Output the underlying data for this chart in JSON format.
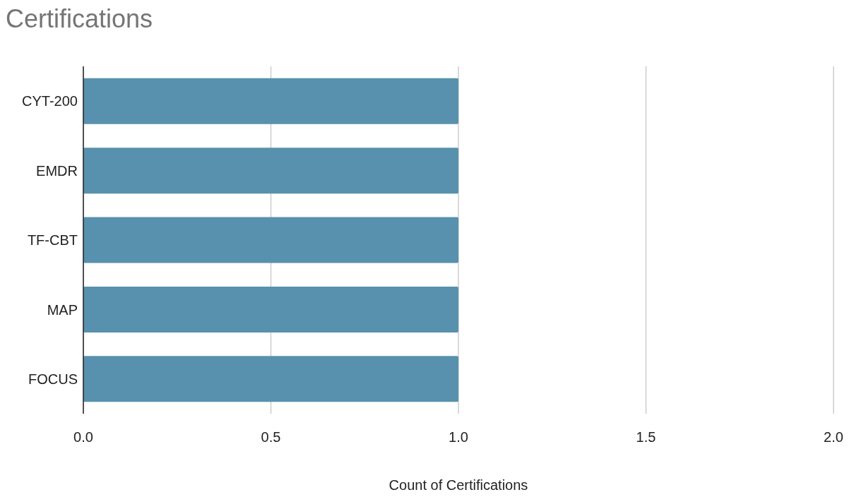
{
  "chart_data": {
    "type": "bar",
    "orientation": "horizontal",
    "title": "Certifications",
    "xlabel": "Count of Certifications",
    "categories": [
      "CYT-200",
      "EMDR",
      "TF-CBT",
      "MAP",
      "FOCUS"
    ],
    "values": [
      1,
      1,
      1,
      1,
      1
    ],
    "color": "#5891ad",
    "xlim": [
      0,
      2
    ],
    "xticks": [
      {
        "value": 0,
        "label": "0.0"
      },
      {
        "value": 0.5,
        "label": "0.5"
      },
      {
        "value": 1,
        "label": "1.0"
      },
      {
        "value": 1.5,
        "label": "1.5"
      },
      {
        "value": 2,
        "label": "2.0"
      }
    ],
    "grid": "x"
  }
}
